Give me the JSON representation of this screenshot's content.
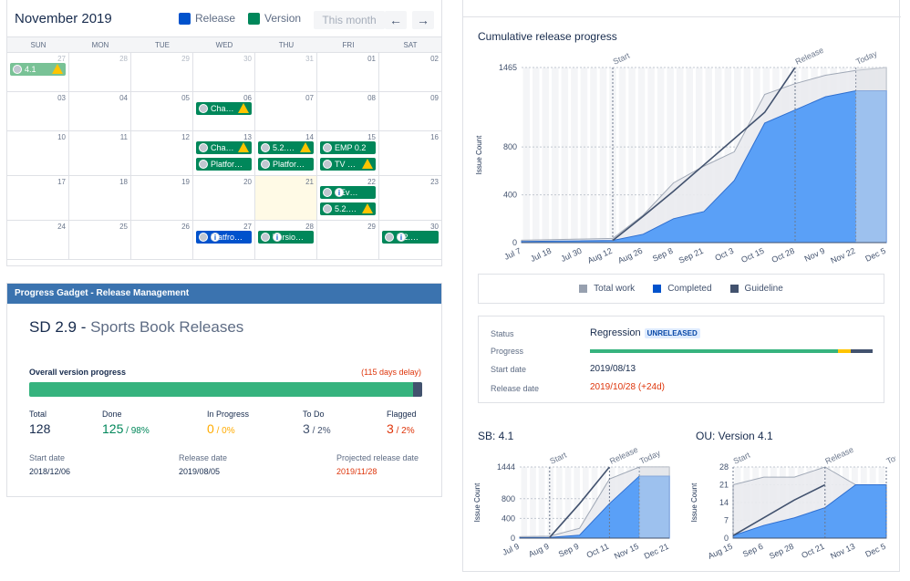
{
  "calendar": {
    "title": "November 2019",
    "legend": {
      "release": "Release",
      "version": "Version"
    },
    "this_month": "This month",
    "prev_icon": "←",
    "next_icon": "→",
    "weekdays": [
      "SUN",
      "MON",
      "TUE",
      "WED",
      "THU",
      "FRI",
      "SAT"
    ],
    "days": [
      "27",
      "28",
      "29",
      "30",
      "31",
      "01",
      "02",
      "03",
      "04",
      "05",
      "06",
      "07",
      "08",
      "09",
      "10",
      "11",
      "12",
      "13",
      "14",
      "15",
      "16",
      "17",
      "18",
      "19",
      "20",
      "21",
      "22",
      "23",
      "24",
      "25",
      "26",
      "27",
      "28",
      "29",
      "30"
    ],
    "events": [
      {
        "cell": 0,
        "slot": 0,
        "label": "4.1",
        "style": "pale",
        "flag": "warn"
      },
      {
        "cell": 10,
        "slot": 0,
        "label": "Cha…",
        "style": "g",
        "flag": "warn"
      },
      {
        "cell": 17,
        "slot": 0,
        "label": "Cha…",
        "style": "g",
        "flag": "warn"
      },
      {
        "cell": 17,
        "slot": 1,
        "label": "Platfor…",
        "style": "g",
        "flag": ""
      },
      {
        "cell": 18,
        "slot": 0,
        "label": "5.2.…",
        "style": "g",
        "flag": "warn"
      },
      {
        "cell": 18,
        "slot": 1,
        "label": "Platfor…",
        "style": "g",
        "flag": ""
      },
      {
        "cell": 19,
        "slot": 0,
        "label": "EMP 0.2",
        "style": "g",
        "flag": ""
      },
      {
        "cell": 19,
        "slot": 1,
        "label": "TV …",
        "style": "g",
        "flag": "warn"
      },
      {
        "cell": 26,
        "slot": 0,
        "label": "SEv…",
        "style": "g",
        "flag": "info"
      },
      {
        "cell": 26,
        "slot": 1,
        "label": "5.2.…",
        "style": "g",
        "flag": "warn"
      },
      {
        "cell": 31,
        "slot": 0,
        "label": "Platfro…",
        "style": "b",
        "flag": "info"
      },
      {
        "cell": 32,
        "slot": 0,
        "label": "Versio…",
        "style": "g",
        "flag": "info"
      },
      {
        "cell": 34,
        "slot": 0,
        "label": "5.2.…",
        "style": "g",
        "flag": "info"
      }
    ],
    "info_glyph": "i",
    "colors": {
      "release": "#0052cc",
      "version": "#00875a"
    }
  },
  "gadget": {
    "header": "Progress Gadget - Release Management",
    "title_code": "SD 2.9 -",
    "title_name": "Sports Book Releases",
    "overall_label": "Overall version progress",
    "delay": "(115 days delay)",
    "done_fraction": 0.976,
    "stats": [
      {
        "label": "Total",
        "value": "128",
        "pct": "",
        "color": "#172b4d"
      },
      {
        "label": "Done",
        "value": "125",
        "pct": "98%",
        "color": "#00875a"
      },
      {
        "label": "In Progress",
        "value": "0",
        "pct": "0%",
        "color": "#ffab00"
      },
      {
        "label": "To Do",
        "value": "3",
        "pct": "2%",
        "color": "#42526e"
      },
      {
        "label": "Flagged",
        "value": "3",
        "pct": "2%",
        "color": "#de350b"
      }
    ],
    "dates": [
      {
        "label": "Start date",
        "value": "2018/12/06"
      },
      {
        "label": "Release date",
        "value": "2019/08/05"
      },
      {
        "label": "Projected release date",
        "value": "2019/11/28"
      }
    ]
  },
  "release": {
    "chart_title": "Cumulative release progress",
    "legend": [
      "Total work",
      "Completed",
      "Guideline"
    ],
    "legend_colors": [
      "#97a0af",
      "#0052cc",
      "#42526e"
    ],
    "status_label": "Status",
    "status_value": "Regression",
    "status_badge": "UNRELEASED",
    "progress_label": "Progress",
    "start_label": "Start date",
    "start_value": "2019/08/13",
    "release_label": "Release date",
    "release_value": "2019/10/28 (+24d)",
    "progress_fractions": {
      "done": 0.876,
      "in_progress": 0.046,
      "todo": 0.078
    }
  },
  "sb_title": "SB: 4.1",
  "ou_title": "OU: Version 4.1",
  "chart_data": [
    {
      "type": "area",
      "title": "Cumulative release progress",
      "ylabel": "Issue Count",
      "ylim": [
        0,
        1465
      ],
      "yticks": [
        "0",
        "400",
        "800",
        "1465"
      ],
      "xticks": [
        "Jul 7",
        "Jul 18",
        "Jul 30",
        "Aug 12",
        "Aug 26",
        "Sep 8",
        "Sep 21",
        "Oct 3",
        "Oct 15",
        "Oct 28",
        "Nov 9",
        "Nov 22",
        "Dec 5"
      ],
      "markers": [
        "Start",
        "Release",
        "Today"
      ],
      "series": [
        {
          "name": "Total work",
          "values": [
            20,
            25,
            30,
            35,
            230,
            500,
            640,
            760,
            1240,
            1330,
            1400,
            1440,
            1465
          ]
        },
        {
          "name": "Completed",
          "values": [
            10,
            12,
            15,
            18,
            70,
            200,
            260,
            520,
            1000,
            1110,
            1220,
            1270,
            1270
          ]
        },
        {
          "name": "Guideline",
          "values": [
            null,
            null,
            null,
            18,
            220,
            430,
            650,
            870,
            1090,
            1465,
            null,
            null,
            null
          ]
        }
      ]
    },
    {
      "type": "area",
      "title": "SB: 4.1",
      "ylabel": "Issue Count",
      "ylim": [
        0,
        1444
      ],
      "yticks": [
        "0",
        "400",
        "800",
        "1444"
      ],
      "xticks": [
        "Jul 9",
        "Aug 9",
        "Sep 9",
        "Oct 11",
        "Nov 15",
        "Dec 21"
      ],
      "markers": [
        "Start",
        "Release",
        "Today"
      ],
      "series": [
        {
          "name": "Total work",
          "values": [
            30,
            40,
            200,
            1200,
            1444,
            1444
          ]
        },
        {
          "name": "Completed",
          "values": [
            10,
            15,
            60,
            700,
            1260,
            1260
          ]
        },
        {
          "name": "Guideline",
          "values": [
            null,
            15,
            700,
            1444,
            null,
            null
          ]
        }
      ]
    },
    {
      "type": "area",
      "title": "OU: Version 4.1",
      "ylabel": "Issue Count",
      "ylim": [
        0,
        28
      ],
      "yticks": [
        "0",
        "7",
        "14",
        "21",
        "28"
      ],
      "xticks": [
        "Aug 15",
        "Sep 6",
        "Sep 28",
        "Oct 21",
        "Nov 13",
        "Dec 5"
      ],
      "markers": [
        "Start",
        "Release",
        "Today"
      ],
      "series": [
        {
          "name": "Total work",
          "values": [
            21,
            24,
            24,
            28,
            21,
            21
          ]
        },
        {
          "name": "Completed",
          "values": [
            1,
            5,
            8,
            12,
            21,
            21
          ]
        },
        {
          "name": "Guideline",
          "values": [
            1,
            8,
            15,
            21,
            null,
            null
          ]
        }
      ]
    }
  ]
}
